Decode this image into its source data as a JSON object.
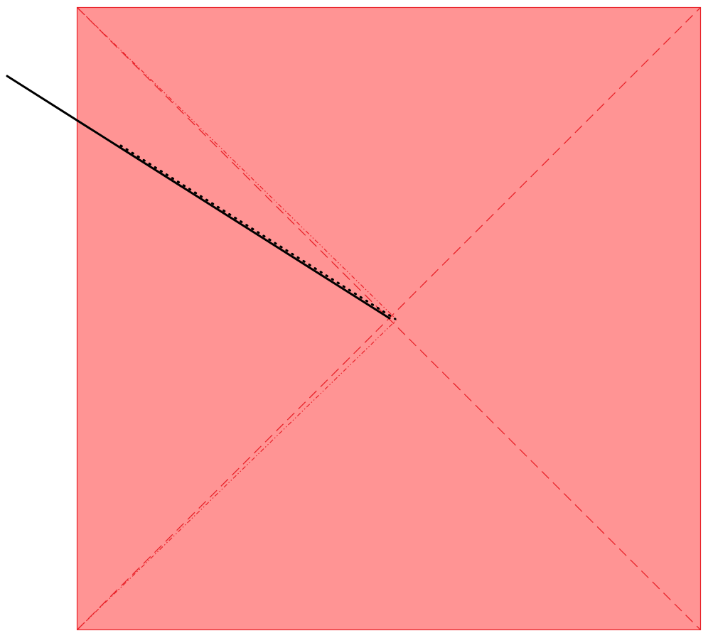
{
  "diagram": {
    "type": "square with diagonals and a line segment",
    "colors": {
      "square_fill": "#ff9494",
      "square_stroke": "#e8232a",
      "diagonal_stroke": "#e8232a",
      "segment_stroke": "#000000",
      "dotted_stroke": "#000000"
    },
    "elements": [
      "square",
      "diagonal-down-dashed",
      "diagonal-up-dashed",
      "diagonal-down-dotted",
      "diagonal-up-dotted",
      "black-segment",
      "black-dotted-segment"
    ]
  }
}
